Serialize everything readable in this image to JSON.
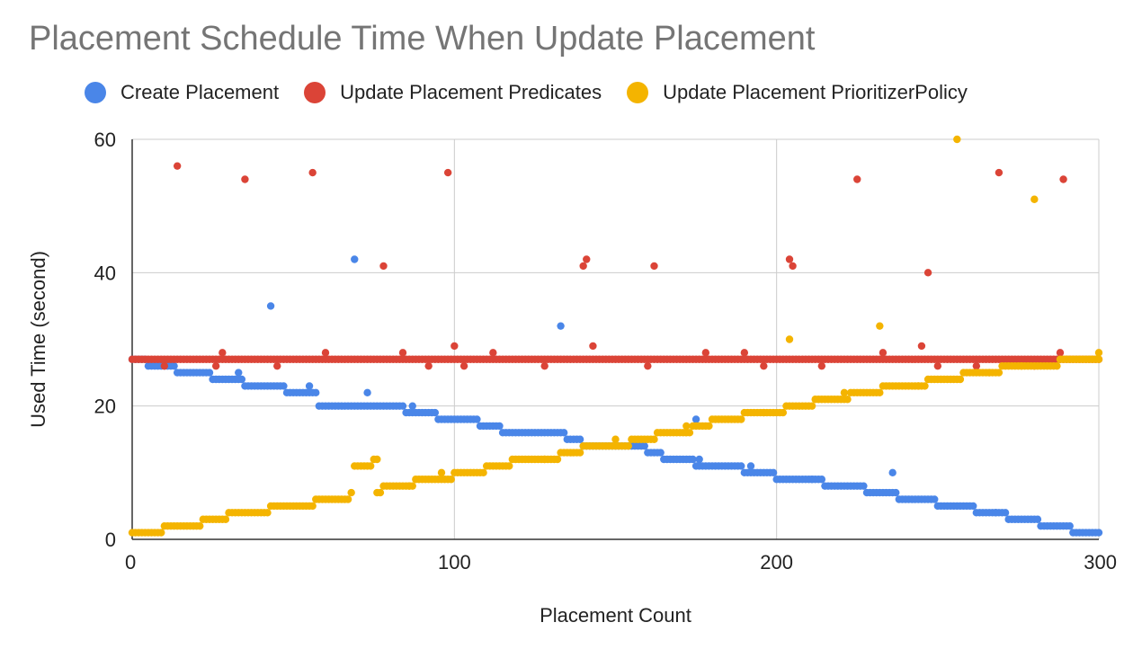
{
  "chart_data": {
    "type": "scatter",
    "title": "Placement Schedule Time When Update Placement",
    "xlabel": "Placement Count",
    "ylabel": "Used Time (second)",
    "xlim": [
      0,
      300
    ],
    "ylim": [
      0,
      60
    ],
    "x_ticks": [
      "0",
      "100",
      "200",
      "300"
    ],
    "y_ticks": [
      "0",
      "20",
      "40",
      "60"
    ],
    "grid": true,
    "legend_position": "top",
    "series": [
      {
        "name": "Create Placement",
        "color": "#4a86e8",
        "trend": [
          [
            0,
            27
          ],
          [
            5,
            26
          ],
          [
            14,
            25
          ],
          [
            25,
            24
          ],
          [
            35,
            23
          ],
          [
            48,
            22
          ],
          [
            58,
            20
          ],
          [
            70,
            20
          ],
          [
            85,
            19
          ],
          [
            95,
            18
          ],
          [
            108,
            17
          ],
          [
            115,
            16
          ],
          [
            135,
            15
          ],
          [
            140,
            14
          ],
          [
            150,
            14
          ],
          [
            160,
            13
          ],
          [
            165,
            12
          ],
          [
            175,
            11
          ],
          [
            190,
            10
          ],
          [
            200,
            9
          ],
          [
            215,
            8
          ],
          [
            228,
            7
          ],
          [
            238,
            6
          ],
          [
            250,
            5
          ],
          [
            262,
            4
          ],
          [
            272,
            3
          ],
          [
            282,
            2
          ],
          [
            292,
            1
          ],
          [
            300,
            1
          ]
        ],
        "outliers": [
          [
            43,
            35
          ],
          [
            69,
            42
          ],
          [
            133,
            32
          ],
          [
            175,
            18
          ],
          [
            236,
            10
          ],
          [
            73,
            22
          ],
          [
            55,
            23
          ],
          [
            33,
            25
          ],
          [
            87,
            20
          ],
          [
            176,
            12
          ],
          [
            192,
            11
          ],
          [
            211,
            9
          ],
          [
            268,
            4
          ]
        ]
      },
      {
        "name": "Update Placement Predicates",
        "color": "#db4437",
        "trend": [
          [
            0,
            27
          ],
          [
            300,
            27
          ]
        ],
        "outliers": [
          [
            14,
            56
          ],
          [
            35,
            54
          ],
          [
            56,
            55
          ],
          [
            78,
            41
          ],
          [
            98,
            55
          ],
          [
            140,
            41
          ],
          [
            141,
            42
          ],
          [
            162,
            41
          ],
          [
            204,
            42
          ],
          [
            205,
            41
          ],
          [
            225,
            54
          ],
          [
            247,
            40
          ],
          [
            269,
            55
          ],
          [
            289,
            54
          ],
          [
            100,
            29
          ],
          [
            143,
            29
          ],
          [
            245,
            29
          ],
          [
            28,
            28
          ],
          [
            60,
            28
          ],
          [
            84,
            28
          ],
          [
            112,
            28
          ],
          [
            178,
            28
          ],
          [
            190,
            28
          ],
          [
            233,
            28
          ],
          [
            288,
            28
          ],
          [
            10,
            26
          ],
          [
            26,
            26
          ],
          [
            45,
            26
          ],
          [
            92,
            26
          ],
          [
            103,
            26
          ],
          [
            128,
            26
          ],
          [
            160,
            26
          ],
          [
            196,
            26
          ],
          [
            214,
            26
          ],
          [
            250,
            26
          ],
          [
            262,
            26
          ],
          [
            280,
            26
          ]
        ]
      },
      {
        "name": "Update Placement PrioritizerPolicy",
        "color": "#f4b400",
        "trend": [
          [
            0,
            1
          ],
          [
            10,
            2
          ],
          [
            22,
            3
          ],
          [
            30,
            4
          ],
          [
            43,
            5
          ],
          [
            57,
            6
          ],
          [
            68,
            7
          ],
          [
            69,
            11
          ],
          [
            75,
            12
          ],
          [
            76,
            7
          ],
          [
            78,
            8
          ],
          [
            88,
            9
          ],
          [
            100,
            10
          ],
          [
            110,
            11
          ],
          [
            118,
            12
          ],
          [
            133,
            13
          ],
          [
            140,
            14
          ],
          [
            155,
            15
          ],
          [
            163,
            16
          ],
          [
            174,
            17
          ],
          [
            180,
            18
          ],
          [
            190,
            19
          ],
          [
            203,
            20
          ],
          [
            212,
            21
          ],
          [
            223,
            22
          ],
          [
            233,
            23
          ],
          [
            247,
            24
          ],
          [
            258,
            25
          ],
          [
            270,
            26
          ],
          [
            288,
            27
          ],
          [
            300,
            27
          ]
        ],
        "outliers": [
          [
            256,
            60
          ],
          [
            280,
            51
          ],
          [
            204,
            30
          ],
          [
            232,
            32
          ],
          [
            300,
            28
          ],
          [
            76,
            12
          ],
          [
            86,
            8
          ],
          [
            96,
            10
          ],
          [
            128,
            12
          ],
          [
            150,
            15
          ],
          [
            172,
            17
          ],
          [
            196,
            19
          ],
          [
            221,
            22
          ],
          [
            244,
            23
          ],
          [
            266,
            25
          ],
          [
            276,
            26
          ]
        ]
      }
    ]
  }
}
